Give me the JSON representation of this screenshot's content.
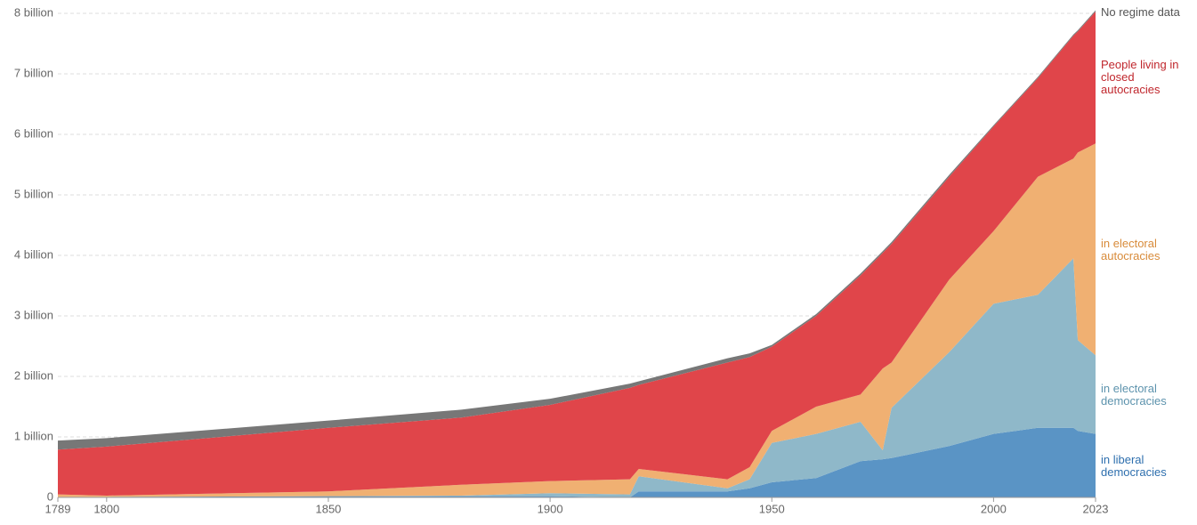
{
  "chart_data": {
    "type": "stacked-area",
    "x": [
      1789,
      1800,
      1850,
      1880,
      1900,
      1918,
      1920,
      1940,
      1945,
      1950,
      1960,
      1970,
      1975,
      1977,
      1990,
      2000,
      2010,
      2018,
      2019,
      2023
    ],
    "series": [
      {
        "name": "in liberal democracies",
        "color": "#5a94c5",
        "label_color": "#2e6fae",
        "values": [
          0.01,
          0.01,
          0.02,
          0.02,
          0.02,
          0.0,
          0.1,
          0.1,
          0.15,
          0.25,
          0.32,
          0.6,
          0.63,
          0.65,
          0.85,
          1.05,
          1.15,
          1.15,
          1.1,
          1.05
        ]
      },
      {
        "name": "in electoral democracies",
        "color": "#8fb8c9",
        "label_color": "#5d93ad",
        "values": [
          0,
          0,
          0,
          0.01,
          0.05,
          0.05,
          0.25,
          0.05,
          0.15,
          0.65,
          0.73,
          0.65,
          0.15,
          0.83,
          1.55,
          2.15,
          2.2,
          2.8,
          1.5,
          1.3
        ]
      },
      {
        "name": "in electoral autocracies",
        "color": "#f0b072",
        "label_color": "#d88b3a",
        "values": [
          0.04,
          0.02,
          0.08,
          0.18,
          0.2,
          0.25,
          0.12,
          0.15,
          0.2,
          0.2,
          0.45,
          0.45,
          1.35,
          0.75,
          1.2,
          1.2,
          1.95,
          1.65,
          3.1,
          3.5
        ]
      },
      {
        "name": "People living in closed autocracies",
        "color": "#e0454a",
        "label_color": "#c0272d",
        "values": [
          0.74,
          0.81,
          1.05,
          1.11,
          1.26,
          1.51,
          1.39,
          1.93,
          1.82,
          1.39,
          1.5,
          1.97,
          1.91,
          1.96,
          1.7,
          1.73,
          1.63,
          2.03,
          2.0,
          2.18
        ]
      },
      {
        "name": "No regime data",
        "color": "#777777",
        "label_color": "#555555",
        "values": [
          0.15,
          0.14,
          0.12,
          0.13,
          0.1,
          0.07,
          0.06,
          0.07,
          0.06,
          0.03,
          0.03,
          0.03,
          0.03,
          0.03,
          0.03,
          0.02,
          0.02,
          0.02,
          0.02,
          0.02
        ]
      }
    ],
    "xlim": [
      1789,
      2023
    ],
    "xticks": [
      1789,
      1800,
      1850,
      1900,
      1950,
      2000,
      2023
    ],
    "ylim": [
      0,
      8
    ],
    "yticks": [
      0,
      {
        "value": 1,
        "label": "1 billion"
      },
      {
        "value": 2,
        "label": "2 billion"
      },
      {
        "value": 3,
        "label": "3 billion"
      },
      {
        "value": 4,
        "label": "4 billion"
      },
      {
        "value": 5,
        "label": "5 billion"
      },
      {
        "value": 6,
        "label": "6 billion"
      },
      {
        "value": 7,
        "label": "7 billion"
      },
      {
        "value": 8,
        "label": "8 billion"
      }
    ],
    "grid": true
  }
}
